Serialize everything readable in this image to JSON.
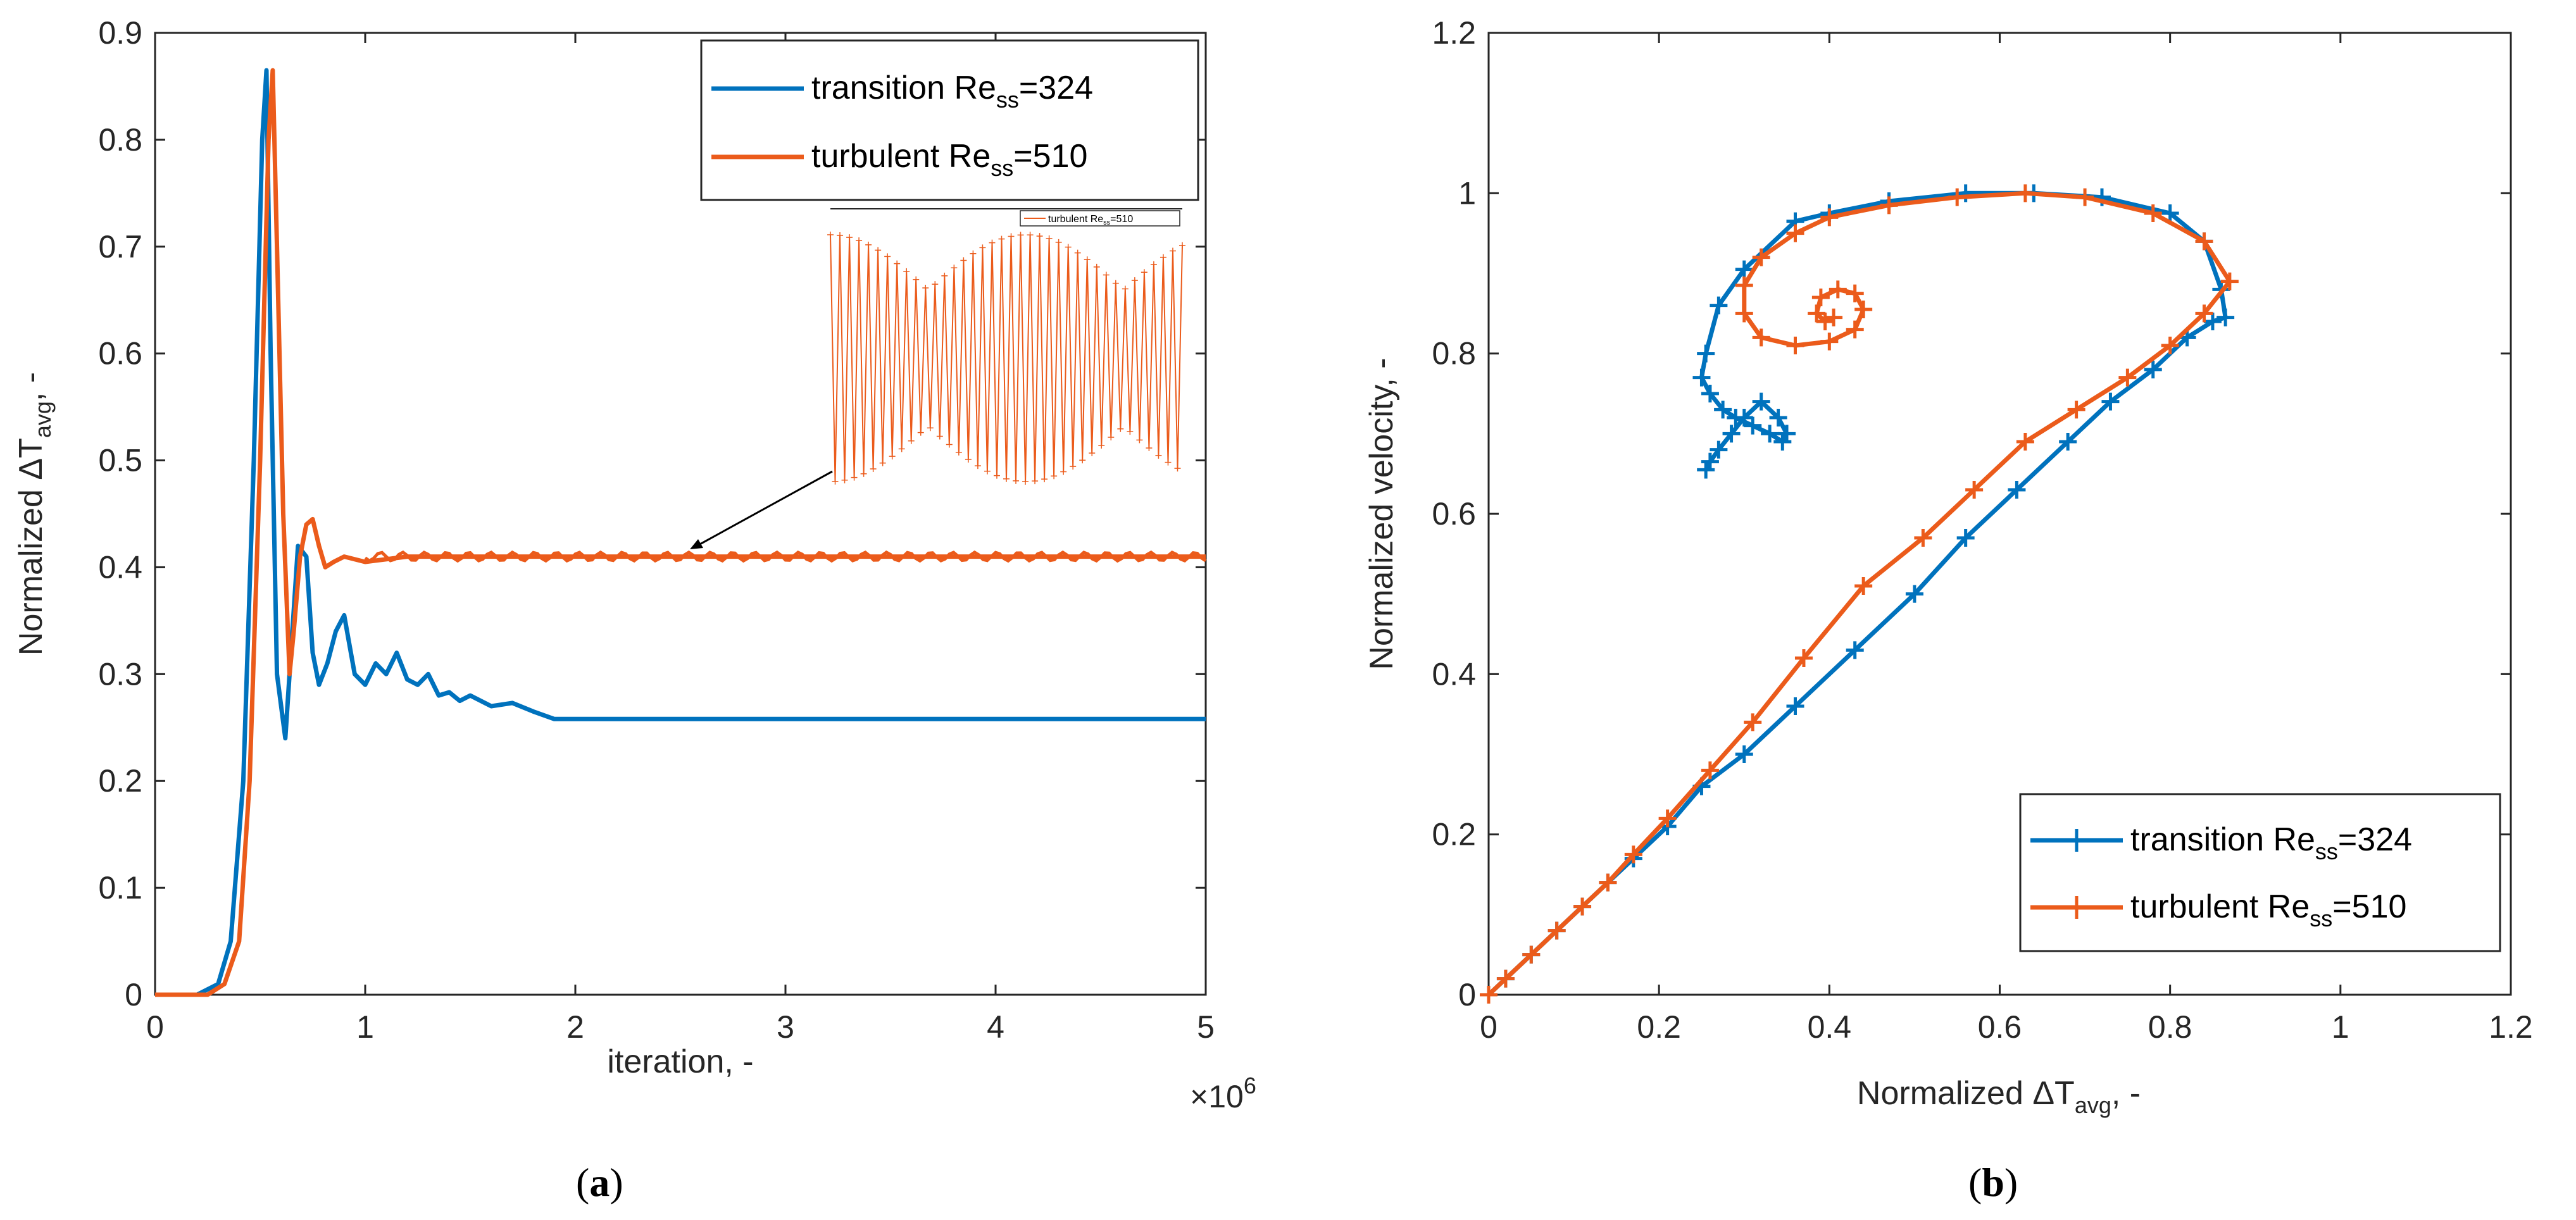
{
  "colors": {
    "transition": "#0072BD",
    "turbulent": "#EB5B1B",
    "axis": "#262626"
  },
  "panels": [
    {
      "letter": "a",
      "label": "(a)"
    },
    {
      "letter": "b",
      "label": "(b)"
    }
  ],
  "chart_data": [
    {
      "type": "line",
      "panel": "a",
      "xlabel": "iteration, -",
      "x_exponent": "×10",
      "x_exponent_power": "6",
      "ylabel_prefix": "Normalized ΔT",
      "ylabel_sub": "avg",
      "ylabel_suffix": ", -",
      "xlim": [
        0,
        5
      ],
      "ylim": [
        0,
        0.9
      ],
      "xticks": [
        "0",
        "1",
        "2",
        "3",
        "4",
        "5"
      ],
      "yticks": [
        "0",
        "0.1",
        "0.2",
        "0.3",
        "0.4",
        "0.5",
        "0.6",
        "0.7",
        "0.8",
        "0.9"
      ],
      "legend_position": "top-right",
      "series": [
        {
          "name": "transition Re_ss=324",
          "legend_main": "transition Re",
          "legend_sub": "ss",
          "legend_tail": "=324",
          "x": [
            0,
            0.2,
            0.3,
            0.36,
            0.42,
            0.47,
            0.51,
            0.53,
            0.55,
            0.58,
            0.62,
            0.65,
            0.68,
            0.72,
            0.75,
            0.78,
            0.82,
            0.86,
            0.9,
            0.95,
            1.0,
            1.05,
            1.1,
            1.15,
            1.2,
            1.25,
            1.3,
            1.35,
            1.4,
            1.45,
            1.5,
            1.6,
            1.7,
            1.8,
            1.9,
            2.0,
            3.0,
            4.0,
            5.0
          ],
          "y": [
            0,
            0,
            0.01,
            0.05,
            0.2,
            0.5,
            0.8,
            0.865,
            0.6,
            0.3,
            0.24,
            0.33,
            0.42,
            0.41,
            0.32,
            0.29,
            0.31,
            0.34,
            0.355,
            0.3,
            0.29,
            0.31,
            0.3,
            0.32,
            0.295,
            0.29,
            0.3,
            0.28,
            0.283,
            0.275,
            0.28,
            0.27,
            0.273,
            0.265,
            0.258,
            0.258,
            0.258,
            0.258,
            0.258
          ]
        },
        {
          "name": "turbulent Re_ss=510",
          "legend_main": "turbulent Re",
          "legend_sub": "ss",
          "legend_tail": "=510",
          "x": [
            0,
            0.25,
            0.33,
            0.4,
            0.45,
            0.5,
            0.54,
            0.56,
            0.58,
            0.61,
            0.64,
            0.66,
            0.69,
            0.72,
            0.75,
            0.78,
            0.81,
            0.85,
            0.9,
            1.0,
            1.2,
            1.5,
            2.0,
            3.0,
            4.0,
            5.0
          ],
          "y": [
            0,
            0,
            0.01,
            0.05,
            0.2,
            0.5,
            0.8,
            0.865,
            0.7,
            0.45,
            0.3,
            0.34,
            0.41,
            0.44,
            0.445,
            0.42,
            0.4,
            0.405,
            0.41,
            0.405,
            0.41,
            0.41,
            0.41,
            0.41,
            0.41,
            0.41
          ]
        }
      ],
      "inset": {
        "legend_main": "turbulent Re",
        "legend_sub": "ss",
        "legend_tail": "=510",
        "annotation_arrow_x": 2.5,
        "annotation_arrow_y": 0.41
      }
    },
    {
      "type": "line",
      "panel": "b",
      "xlabel_prefix": "Normalized ΔT",
      "xlabel_sub": "avg",
      "xlabel_suffix": ", -",
      "ylabel": "Normalized velocity, -",
      "xlim": [
        0,
        1.2
      ],
      "ylim": [
        0,
        1.2
      ],
      "xticks": [
        "0",
        "0.2",
        "0.4",
        "0.6",
        "0.8",
        "1",
        "1.2"
      ],
      "yticks": [
        "0",
        "0.2",
        "0.4",
        "0.6",
        "0.8",
        "1",
        "1.2"
      ],
      "legend_position": "bottom-right",
      "series": [
        {
          "name": "transition Re_ss=324",
          "legend_main": "transition Re",
          "legend_sub": "ss",
          "legend_tail": "=324",
          "x": [
            0,
            0.02,
            0.05,
            0.08,
            0.11,
            0.14,
            0.17,
            0.21,
            0.25,
            0.3,
            0.36,
            0.43,
            0.5,
            0.56,
            0.62,
            0.68,
            0.73,
            0.78,
            0.82,
            0.85,
            0.865,
            0.86,
            0.84,
            0.8,
            0.72,
            0.64,
            0.56,
            0.47,
            0.4,
            0.36,
            0.3,
            0.27,
            0.255,
            0.25,
            0.26,
            0.275,
            0.29,
            0.31,
            0.33,
            0.345,
            0.35,
            0.34,
            0.32,
            0.3,
            0.285,
            0.27,
            0.26,
            0.255
          ],
          "y": [
            0,
            0.02,
            0.05,
            0.08,
            0.11,
            0.14,
            0.17,
            0.21,
            0.26,
            0.3,
            0.36,
            0.43,
            0.5,
            0.57,
            0.63,
            0.69,
            0.74,
            0.78,
            0.82,
            0.84,
            0.845,
            0.88,
            0.94,
            0.975,
            0.995,
            1.0,
            1.0,
            0.99,
            0.975,
            0.965,
            0.905,
            0.86,
            0.8,
            0.77,
            0.75,
            0.73,
            0.72,
            0.71,
            0.7,
            0.69,
            0.7,
            0.72,
            0.74,
            0.72,
            0.7,
            0.68,
            0.665,
            0.655
          ]
        },
        {
          "name": "turbulent Re_ss=510",
          "legend_main": "turbulent Re",
          "legend_sub": "ss",
          "legend_tail": "=510",
          "x": [
            0,
            0.02,
            0.05,
            0.08,
            0.11,
            0.14,
            0.17,
            0.21,
            0.26,
            0.31,
            0.37,
            0.44,
            0.51,
            0.57,
            0.63,
            0.69,
            0.75,
            0.8,
            0.84,
            0.87,
            0.84,
            0.78,
            0.7,
            0.63,
            0.55,
            0.47,
            0.4,
            0.36,
            0.32,
            0.3,
            0.3,
            0.32,
            0.36,
            0.4,
            0.43,
            0.44,
            0.43,
            0.41,
            0.39,
            0.385,
            0.395,
            0.405
          ],
          "y": [
            0,
            0.02,
            0.05,
            0.08,
            0.11,
            0.14,
            0.175,
            0.22,
            0.28,
            0.34,
            0.42,
            0.51,
            0.57,
            0.63,
            0.69,
            0.73,
            0.77,
            0.81,
            0.85,
            0.89,
            0.94,
            0.975,
            0.995,
            1.0,
            0.995,
            0.985,
            0.97,
            0.95,
            0.92,
            0.885,
            0.85,
            0.82,
            0.81,
            0.815,
            0.83,
            0.855,
            0.875,
            0.88,
            0.87,
            0.85,
            0.84,
            0.845
          ]
        }
      ]
    }
  ]
}
